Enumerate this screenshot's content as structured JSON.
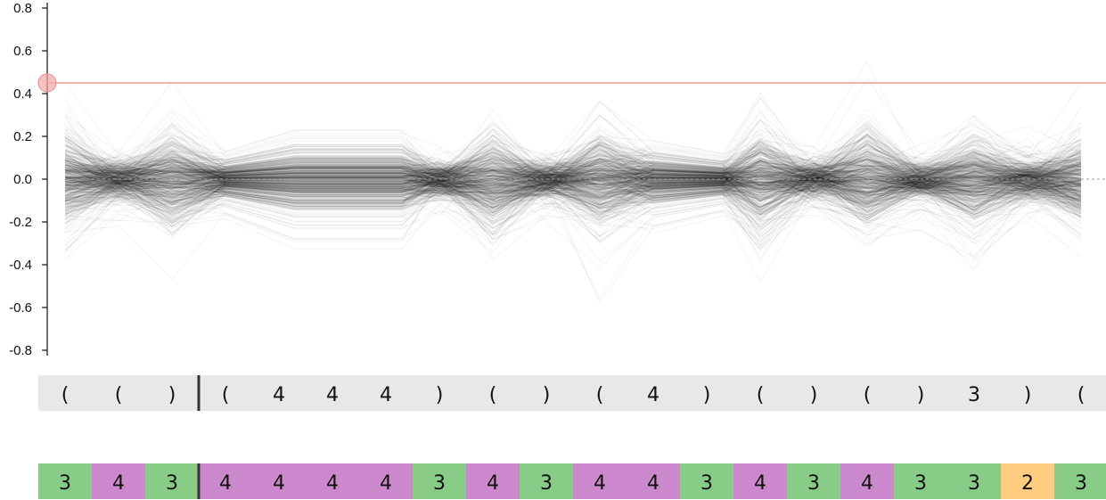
{
  "chart_data": {
    "type": "line",
    "ylim": [
      -0.8,
      0.8
    ],
    "yticks": [
      0.8,
      0.6,
      0.4,
      0.2,
      0.0,
      -0.2,
      -0.4,
      -0.6,
      -0.8
    ],
    "ytick_labels": [
      "0.8",
      "0.6",
      "0.4",
      "0.2",
      "0.0",
      "-0.2",
      "-0.4",
      "-0.6",
      "-0.8"
    ],
    "threshold": 0.45,
    "threshold_color": "#f08080",
    "line_color": "#000000",
    "zero_line": "dashed",
    "cursor_after_index": 2,
    "tokens": [
      "(",
      "(",
      ")",
      "(",
      "4",
      "4",
      "4",
      ")",
      "(",
      ")",
      "(",
      "4",
      ")",
      "(",
      ")",
      "(",
      ")",
      "3",
      ")",
      "("
    ],
    "classes": [
      {
        "label": "3",
        "color": "#88cc88"
      },
      {
        "label": "4",
        "color": "#cc88cc"
      },
      {
        "label": "3",
        "color": "#88cc88"
      },
      {
        "label": "4",
        "color": "#cc88cc"
      },
      {
        "label": "4",
        "color": "#cc88cc"
      },
      {
        "label": "4",
        "color": "#cc88cc"
      },
      {
        "label": "4",
        "color": "#cc88cc"
      },
      {
        "label": "3",
        "color": "#88cc88"
      },
      {
        "label": "4",
        "color": "#cc88cc"
      },
      {
        "label": "3",
        "color": "#88cc88"
      },
      {
        "label": "4",
        "color": "#cc88cc"
      },
      {
        "label": "4",
        "color": "#cc88cc"
      },
      {
        "label": "3",
        "color": "#88cc88"
      },
      {
        "label": "4",
        "color": "#cc88cc"
      },
      {
        "label": "3",
        "color": "#88cc88"
      },
      {
        "label": "4",
        "color": "#cc88cc"
      },
      {
        "label": "3",
        "color": "#88cc88"
      },
      {
        "label": "3",
        "color": "#88cc88"
      },
      {
        "label": "2",
        "color": "#ffcc80"
      },
      {
        "label": "3",
        "color": "#88cc88"
      }
    ],
    "spread": [
      0.28,
      0.13,
      0.29,
      0.13,
      0.23,
      0.23,
      0.23,
      0.12,
      0.3,
      0.13,
      0.3,
      0.18,
      0.12,
      0.31,
      0.13,
      0.31,
      0.12,
      0.3,
      0.13,
      0.26
    ]
  }
}
